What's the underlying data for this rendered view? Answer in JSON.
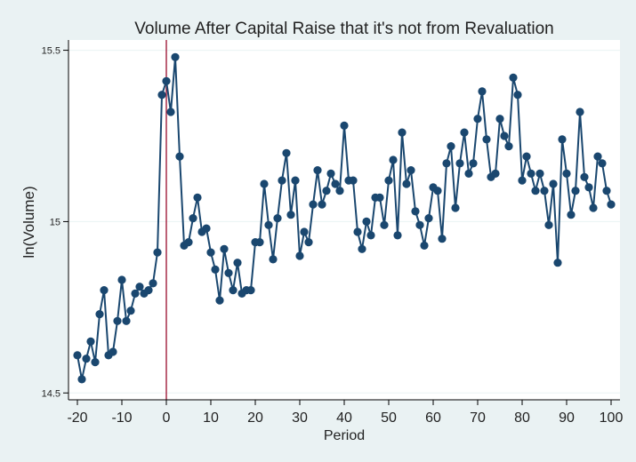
{
  "chart_data": {
    "type": "scatter",
    "connected": true,
    "title": "Volume  After Capital Raise that it's not from Revaluation",
    "xlabel": "Period",
    "ylabel": "ln(Volume)",
    "xlim": [
      -22,
      102
    ],
    "ylim": [
      14.48,
      15.53
    ],
    "xticks": [
      -20,
      -10,
      0,
      10,
      20,
      30,
      40,
      50,
      60,
      70,
      80,
      90,
      100
    ],
    "xtick_labels": [
      "-20",
      "-10",
      "0",
      "10",
      "20",
      "30",
      "40",
      "50",
      "60",
      "70",
      "80",
      "90",
      "100"
    ],
    "yticks": [
      14.5,
      15,
      15.5
    ],
    "ytick_labels": [
      "14.5",
      "15",
      "15.5"
    ],
    "grid": "horizontal",
    "reference_line": {
      "x": 0,
      "color": "#990c2c"
    },
    "series_color": "#1a476f",
    "x": [
      -20,
      -19,
      -18,
      -17,
      -16,
      -15,
      -14,
      -13,
      -12,
      -11,
      -10,
      -9,
      -8,
      -7,
      -6,
      -5,
      -4,
      -3,
      -2,
      -1,
      0,
      1,
      2,
      3,
      4,
      5,
      6,
      7,
      8,
      9,
      10,
      11,
      12,
      13,
      14,
      15,
      16,
      17,
      18,
      19,
      20,
      21,
      22,
      23,
      24,
      25,
      26,
      27,
      28,
      29,
      30,
      31,
      32,
      33,
      34,
      35,
      36,
      37,
      38,
      39,
      40,
      41,
      42,
      43,
      44,
      45,
      46,
      47,
      48,
      49,
      50,
      51,
      52,
      53,
      54,
      55,
      56,
      57,
      58,
      59,
      60,
      61,
      62,
      63,
      64,
      65,
      66,
      67,
      68,
      69,
      70,
      71,
      72,
      73,
      74,
      75,
      76,
      77,
      78,
      79,
      80,
      81,
      82,
      83,
      84,
      85,
      86,
      87,
      88,
      89,
      90,
      91,
      92,
      93,
      94,
      95,
      96,
      97,
      98,
      99,
      100
    ],
    "y": [
      14.61,
      14.54,
      14.6,
      14.65,
      14.59,
      14.73,
      14.8,
      14.61,
      14.62,
      14.71,
      14.83,
      14.71,
      14.74,
      14.79,
      14.81,
      14.79,
      14.8,
      14.82,
      14.91,
      15.37,
      15.41,
      15.32,
      15.48,
      15.19,
      14.93,
      14.94,
      15.01,
      15.07,
      14.97,
      14.98,
      14.91,
      14.86,
      14.77,
      14.92,
      14.85,
      14.8,
      14.88,
      14.79,
      14.8,
      14.8,
      14.94,
      14.94,
      15.11,
      14.99,
      14.89,
      15.01,
      15.12,
      15.2,
      15.02,
      15.12,
      14.9,
      14.97,
      14.94,
      15.05,
      15.15,
      15.05,
      15.09,
      15.14,
      15.11,
      15.09,
      15.28,
      15.12,
      15.12,
      14.97,
      14.92,
      15.0,
      14.96,
      15.07,
      15.07,
      14.99,
      15.12,
      15.18,
      14.96,
      15.26,
      15.11,
      15.15,
      15.03,
      14.99,
      14.93,
      15.01,
      15.1,
      15.09,
      14.95,
      15.17,
      15.22,
      15.04,
      15.17,
      15.26,
      15.14,
      15.17,
      15.3,
      15.38,
      15.24,
      15.13,
      15.14,
      15.3,
      15.25,
      15.22,
      15.42,
      15.37,
      15.12,
      15.19,
      15.14,
      15.09,
      15.14,
      15.09,
      14.99,
      15.11,
      14.88,
      15.24,
      15.14,
      15.02,
      15.09,
      15.32,
      15.13,
      15.1,
      15.04,
      15.19,
      15.17,
      15.09,
      15.05
    ]
  }
}
